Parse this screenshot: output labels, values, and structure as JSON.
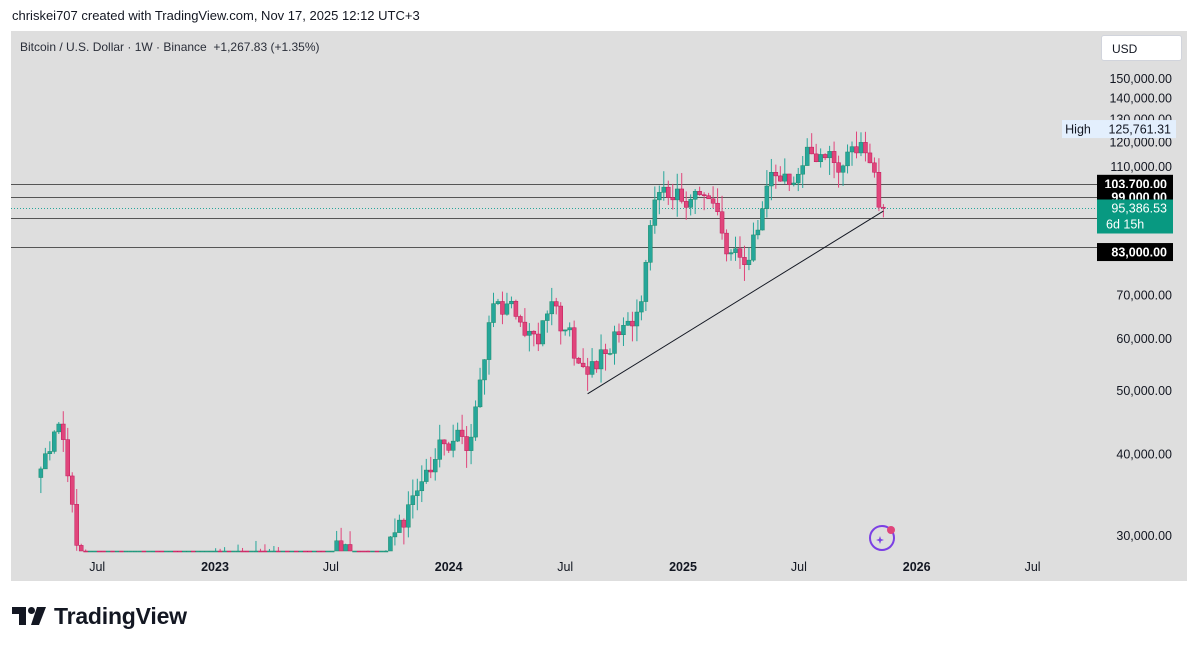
{
  "caption": "chriskei707 created with TradingView.com, Nov 17, 2025 12:12 UTC+3",
  "header": {
    "symbol": "Bitcoin / U.S. Dollar · 1W · Binance",
    "change": "+1,267.83 (+1.35%)",
    "currency": "USD"
  },
  "brand": {
    "name": "TradingView"
  },
  "colors": {
    "up": "#26a69a",
    "up_dark": "#1e8d6b",
    "down": "#e0457b",
    "down_dark": "#c2185b",
    "background": "#dedede",
    "price_label": "#089981"
  },
  "chart_data": {
    "type": "candlestick",
    "title": "Bitcoin / U.S. Dollar · 1W · Binance",
    "ylim": [
      25000,
      155000
    ],
    "y_scale": "log",
    "y_ticks": [
      {
        "value": 150000,
        "label": "150,000.00"
      },
      {
        "value": 140000,
        "label": "140,000.00"
      },
      {
        "value": 130000,
        "label": "130,000.00"
      },
      {
        "value": 120000,
        "label": "120,000.00"
      },
      {
        "value": 110000,
        "label": "110,000.00"
      },
      {
        "value": 70000,
        "label": "70,000.00"
      },
      {
        "value": 60000,
        "label": "60,000.00"
      },
      {
        "value": 50000,
        "label": "50,000.00"
      },
      {
        "value": 40000,
        "label": "40,000.00"
      },
      {
        "value": 30000,
        "label": "30,000.00"
      }
    ],
    "x_ticks": [
      {
        "date": "2022-07-01",
        "label": "Jul"
      },
      {
        "date": "2023-01-01",
        "label": "2023"
      },
      {
        "date": "2023-07-01",
        "label": "Jul"
      },
      {
        "date": "2024-01-01",
        "label": "2024"
      },
      {
        "date": "2024-07-01",
        "label": "Jul"
      },
      {
        "date": "2025-01-01",
        "label": "2025"
      },
      {
        "date": "2025-07-01",
        "label": "Jul"
      },
      {
        "date": "2026-01-01",
        "label": "2026"
      },
      {
        "date": "2026-07-01",
        "label": "Jul"
      }
    ],
    "horizontal_levels": [
      {
        "value": 103700,
        "label": "103,700.00"
      },
      {
        "value": 99000,
        "label": "99,000.00"
      },
      {
        "value": 92000,
        "label": "92,000.00"
      },
      {
        "value": 83000,
        "label": "83,000.00"
      }
    ],
    "high_marker": {
      "label": "High",
      "value": 125761.31,
      "value_label": "125,761.31"
    },
    "last_price": {
      "value": 95386.53,
      "label": "95,386.53",
      "countdown": "6d 15h"
    },
    "trendline": {
      "start": {
        "date": "2024-08-05",
        "value": 49500
      },
      "end": {
        "date": "2025-11-10",
        "value": 94200
      }
    },
    "anchors": [
      {
        "date": "2022-04-04",
        "value": 38000
      },
      {
        "date": "2022-05-02",
        "value": 44500
      },
      {
        "date": "2022-06-13",
        "value": 24500
      },
      {
        "date": "2023-03-27",
        "value": 27500
      },
      {
        "date": "2023-06-26",
        "value": 25800
      },
      {
        "date": "2023-07-10",
        "value": 29500
      },
      {
        "date": "2023-09-11",
        "value": 26000
      },
      {
        "date": "2023-10-30",
        "value": 33500
      },
      {
        "date": "2023-12-25",
        "value": 41500
      },
      {
        "date": "2024-02-05",
        "value": 42500
      },
      {
        "date": "2024-03-11",
        "value": 68000
      },
      {
        "date": "2024-04-15",
        "value": 65000
      },
      {
        "date": "2024-05-20",
        "value": 59000
      },
      {
        "date": "2024-06-10",
        "value": 68500
      },
      {
        "date": "2024-07-01",
        "value": 62000
      },
      {
        "date": "2024-08-05",
        "value": 53000
      },
      {
        "date": "2024-09-02",
        "value": 57000
      },
      {
        "date": "2024-09-30",
        "value": 63000
      },
      {
        "date": "2024-10-28",
        "value": 68500
      },
      {
        "date": "2024-11-18",
        "value": 98000
      },
      {
        "date": "2024-12-16",
        "value": 98000
      },
      {
        "date": "2025-01-20",
        "value": 101000
      },
      {
        "date": "2025-02-24",
        "value": 94000
      },
      {
        "date": "2025-03-10",
        "value": 81000
      },
      {
        "date": "2025-04-07",
        "value": 78000
      },
      {
        "date": "2025-05-05",
        "value": 95000
      },
      {
        "date": "2025-05-19",
        "value": 108000
      },
      {
        "date": "2025-06-23",
        "value": 104000
      },
      {
        "date": "2025-07-14",
        "value": 118000
      },
      {
        "date": "2025-08-04",
        "value": 115000
      },
      {
        "date": "2025-09-01",
        "value": 108000
      },
      {
        "date": "2025-10-06",
        "value": 120000
      },
      {
        "date": "2025-10-27",
        "value": 108000
      },
      {
        "date": "2025-11-03",
        "value": 95500
      },
      {
        "date": "2025-11-10",
        "value": 95386
      }
    ]
  }
}
